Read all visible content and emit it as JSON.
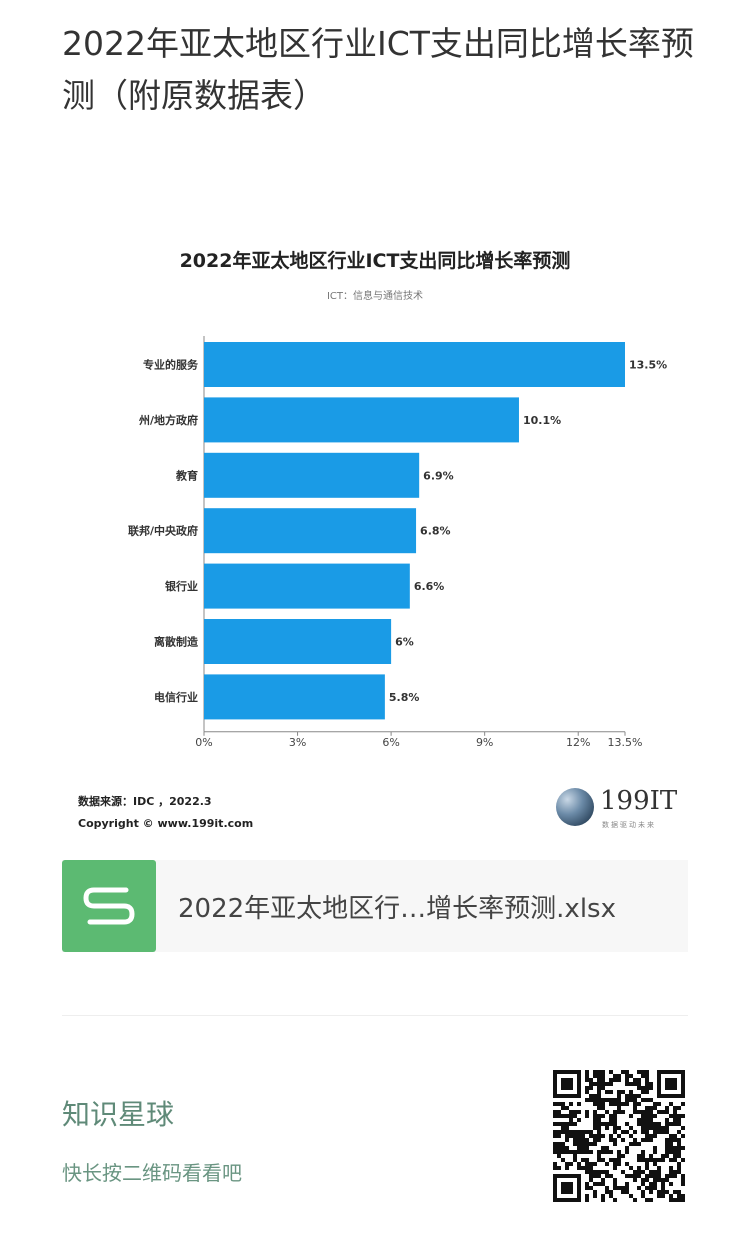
{
  "page": {
    "title": "2022年亚太地区行业ICT支出同比增长率预测（附原数据表）"
  },
  "chart_data": {
    "type": "bar",
    "orientation": "horizontal",
    "title": "2022年亚太地区行业ICT支出同比增长率预测",
    "subtitle": "ICT：信息与通信技术",
    "categories": [
      "专业的服务",
      "州/地方政府",
      "教育",
      "联邦/中央政府",
      "银行业",
      "离散制造",
      "电信行业"
    ],
    "values": [
      13.5,
      10.1,
      6.9,
      6.8,
      6.6,
      6.0,
      5.8
    ],
    "value_labels": [
      "13.5%",
      "10.1%",
      "6.9%",
      "6.8%",
      "6.6%",
      "6%",
      "5.8%"
    ],
    "x_ticks": [
      "0%",
      "3%",
      "6%",
      "9%",
      "12%",
      "13.5%"
    ],
    "x_tick_values": [
      0,
      3,
      6,
      9,
      12,
      13.5
    ],
    "xlim": [
      0,
      13.5
    ],
    "bar_color": "#1a9be6",
    "grid": false,
    "legend": "none"
  },
  "source": {
    "data_source": "数据来源：IDC ，2022.3",
    "copyright": "Copyright © www.199it.com"
  },
  "logo": {
    "brand": "199IT",
    "tagline": "数据驱动未来"
  },
  "file": {
    "name": "2022年亚太地区行…增长率预测.xlsx",
    "icon": "spreadsheet-s-icon",
    "icon_color": "#5cba72"
  },
  "knowledge_planet": {
    "title": "知识星球",
    "subtitle": "快长按二维码看看吧"
  }
}
